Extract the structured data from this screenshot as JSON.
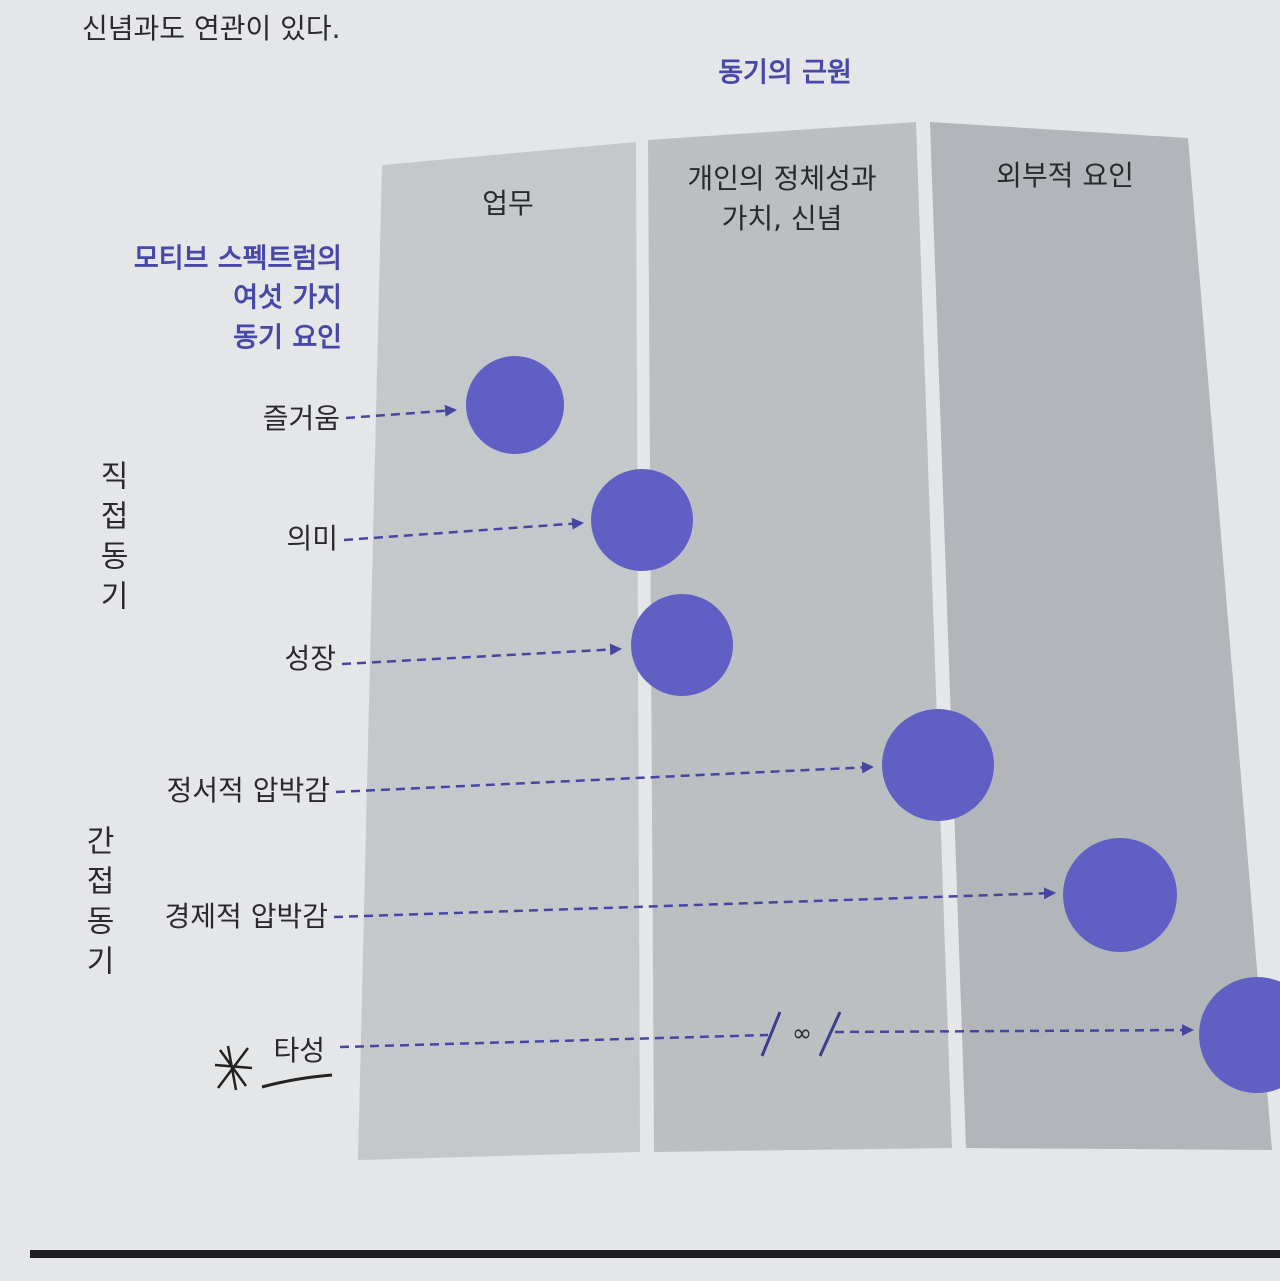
{
  "intro_text": "신념과도 연관이 있다.",
  "title": "동기의 근원",
  "columns": [
    [
      "업무"
    ],
    [
      "개인의 정체성과",
      "가치, 신념"
    ],
    [
      "외부적 요인"
    ]
  ],
  "factors_heading": [
    "모티브 스펙트럼의",
    "여섯 가지",
    "동기 요인"
  ],
  "groups": [
    "직접동기",
    "간접동기"
  ],
  "factors": [
    "즐거움",
    "의미",
    "성장",
    "정서적 압박감",
    "경제적 압박감",
    "타성"
  ],
  "break_symbol": "∞"
}
